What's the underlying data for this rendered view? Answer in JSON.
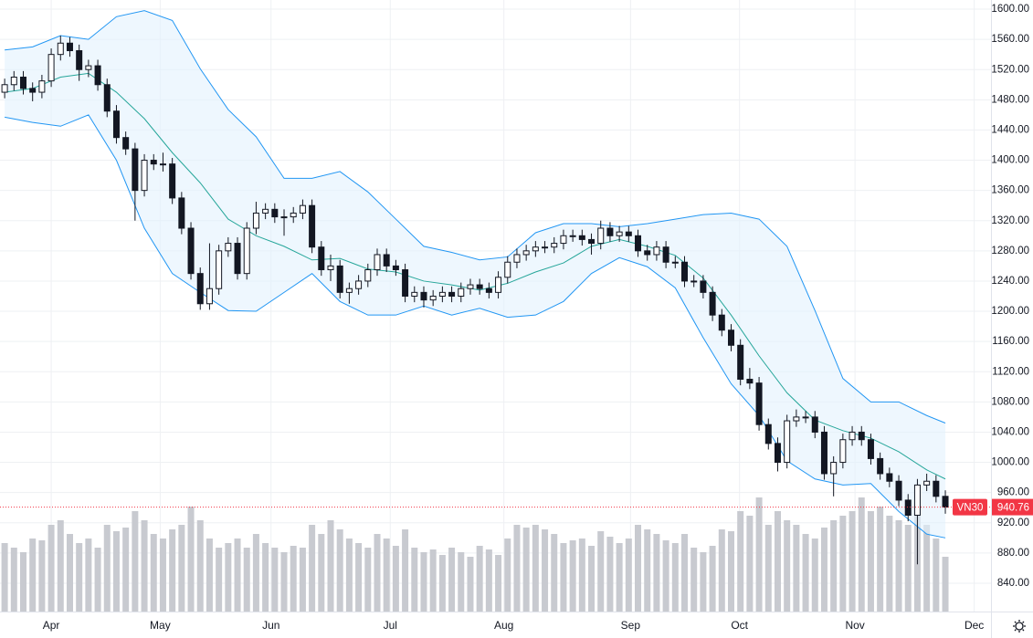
{
  "chart_data": {
    "type": "candlestick",
    "symbol": "VN30",
    "last": 940.76,
    "open": [
      1490,
      1500,
      1510,
      1495,
      1490,
      1505,
      1540,
      1555,
      1545,
      1520,
      1525,
      1500,
      1465,
      1430,
      1415,
      1360,
      1400,
      1395,
      1395,
      1350,
      1310,
      1250,
      1210,
      1230,
      1280,
      1290,
      1250,
      1310,
      1330,
      1335,
      1325,
      1325,
      1330,
      1340,
      1285,
      1255,
      1260,
      1225,
      1230,
      1240,
      1255,
      1275,
      1260,
      1255,
      1220,
      1225,
      1215,
      1220,
      1225,
      1220,
      1230,
      1235,
      1230,
      1225,
      1245,
      1265,
      1275,
      1280,
      1285,
      1285,
      1290,
      1300,
      1300,
      1295,
      1290,
      1310,
      1300,
      1305,
      1300,
      1280,
      1275,
      1285,
      1265,
      1265,
      1240,
      1240,
      1225,
      1195,
      1175,
      1155,
      1110,
      1105,
      1050,
      1025,
      1000,
      1055,
      1060,
      1060,
      1040,
      985,
      1000,
      1030,
      1040,
      1030,
      1005,
      985,
      975,
      950,
      930,
      970,
      975,
      955
    ],
    "high": [
      1508,
      1518,
      1518,
      1503,
      1513,
      1548,
      1565,
      1563,
      1553,
      1533,
      1533,
      1508,
      1473,
      1438,
      1423,
      1408,
      1408,
      1410,
      1403,
      1358,
      1318,
      1258,
      1290,
      1288,
      1298,
      1298,
      1318,
      1345,
      1343,
      1343,
      1335,
      1338,
      1348,
      1348,
      1293,
      1275,
      1268,
      1238,
      1248,
      1263,
      1283,
      1283,
      1268,
      1263,
      1233,
      1233,
      1228,
      1233,
      1233,
      1238,
      1243,
      1243,
      1238,
      1253,
      1273,
      1283,
      1288,
      1293,
      1293,
      1298,
      1308,
      1308,
      1308,
      1303,
      1320,
      1318,
      1313,
      1313,
      1308,
      1288,
      1293,
      1293,
      1273,
      1273,
      1248,
      1248,
      1233,
      1203,
      1183,
      1163,
      1125,
      1113,
      1058,
      1033,
      1063,
      1070,
      1068,
      1068,
      1048,
      1008,
      1038,
      1048,
      1048,
      1038,
      1013,
      993,
      983,
      958,
      978,
      985,
      983,
      963
    ],
    "low": [
      1482,
      1492,
      1487,
      1478,
      1482,
      1497,
      1532,
      1537,
      1505,
      1510,
      1492,
      1457,
      1422,
      1407,
      1320,
      1352,
      1387,
      1385,
      1342,
      1302,
      1242,
      1202,
      1202,
      1222,
      1272,
      1242,
      1242,
      1302,
      1322,
      1317,
      1300,
      1317,
      1322,
      1277,
      1247,
      1240,
      1217,
      1210,
      1222,
      1232,
      1247,
      1252,
      1247,
      1212,
      1212,
      1205,
      1207,
      1212,
      1212,
      1212,
      1222,
      1222,
      1217,
      1217,
      1237,
      1257,
      1267,
      1272,
      1277,
      1277,
      1282,
      1292,
      1287,
      1275,
      1282,
      1292,
      1292,
      1292,
      1272,
      1267,
      1267,
      1257,
      1257,
      1232,
      1232,
      1217,
      1187,
      1167,
      1147,
      1102,
      1097,
      1042,
      1017,
      988,
      992,
      1047,
      1052,
      1032,
      977,
      955,
      992,
      1022,
      1022,
      997,
      977,
      967,
      942,
      922,
      865,
      962,
      947,
      932
    ],
    "close": [
      1500,
      1510,
      1495,
      1490,
      1505,
      1540,
      1555,
      1545,
      1520,
      1525,
      1500,
      1465,
      1430,
      1415,
      1360,
      1400,
      1395,
      1395,
      1350,
      1310,
      1250,
      1210,
      1230,
      1280,
      1290,
      1250,
      1310,
      1330,
      1335,
      1325,
      1325,
      1330,
      1340,
      1285,
      1255,
      1260,
      1225,
      1230,
      1240,
      1255,
      1275,
      1260,
      1255,
      1220,
      1225,
      1215,
      1220,
      1225,
      1220,
      1230,
      1235,
      1230,
      1225,
      1245,
      1265,
      1275,
      1280,
      1285,
      1285,
      1290,
      1300,
      1300,
      1295,
      1290,
      1310,
      1300,
      1305,
      1300,
      1280,
      1275,
      1285,
      1265,
      1265,
      1240,
      1240,
      1225,
      1195,
      1175,
      1155,
      1110,
      1105,
      1050,
      1025,
      1000,
      1055,
      1060,
      1060,
      1040,
      985,
      1000,
      1030,
      1040,
      1030,
      1005,
      985,
      975,
      950,
      930,
      970,
      975,
      955,
      940.76
    ],
    "volume": [
      75,
      70,
      65,
      80,
      78,
      95,
      100,
      85,
      75,
      80,
      70,
      95,
      88,
      92,
      110,
      100,
      85,
      80,
      90,
      95,
      115,
      100,
      80,
      70,
      75,
      80,
      70,
      85,
      75,
      70,
      65,
      72,
      70,
      95,
      85,
      100,
      90,
      80,
      75,
      70,
      85,
      80,
      72,
      90,
      70,
      65,
      68,
      62,
      70,
      65,
      60,
      72,
      68,
      62,
      80,
      95,
      92,
      95,
      90,
      85,
      75,
      78,
      80,
      72,
      88,
      82,
      75,
      80,
      95,
      90,
      85,
      78,
      75,
      85,
      70,
      65,
      72,
      90,
      88,
      110,
      105,
      125,
      95,
      110,
      100,
      95,
      85,
      80,
      92,
      100,
      105,
      110,
      125,
      110,
      115,
      105,
      100,
      95,
      120,
      95,
      80,
      60
    ],
    "bands": {
      "x": [
        0,
        3,
        6,
        9,
        12,
        15,
        18,
        21,
        24,
        27,
        30,
        33,
        36,
        39,
        42,
        45,
        48,
        51,
        54,
        57,
        60,
        63,
        66,
        69,
        72,
        75,
        78,
        81,
        84,
        87,
        90,
        93,
        96,
        99,
        101
      ],
      "upper": [
        1546,
        1550,
        1565,
        1560,
        1590,
        1598,
        1585,
        1521,
        1467,
        1431,
        1376,
        1376,
        1385,
        1358,
        1322,
        1286,
        1278,
        1268,
        1272,
        1304,
        1316,
        1316,
        1312,
        1316,
        1322,
        1328,
        1330,
        1322,
        1286,
        1201,
        1111,
        1080,
        1080,
        1062,
        1052
      ],
      "middle": [
        1490,
        1495,
        1510,
        1515,
        1490,
        1455,
        1410,
        1370,
        1322,
        1300,
        1286,
        1268,
        1270,
        1256,
        1252,
        1240,
        1235,
        1228,
        1237,
        1252,
        1264,
        1286,
        1295,
        1286,
        1274,
        1244,
        1195,
        1141,
        1092,
        1056,
        1042,
        1032,
        1014,
        990,
        978
      ],
      "lower": [
        1457,
        1450,
        1445,
        1460,
        1400,
        1310,
        1250,
        1225,
        1201,
        1200,
        1225,
        1250,
        1213,
        1195,
        1195,
        1207,
        1195,
        1204,
        1192,
        1195,
        1213,
        1250,
        1271,
        1259,
        1231,
        1165,
        1104,
        1062,
        1002,
        978,
        970,
        972,
        935,
        905,
        900
      ],
      "line_color": "#2196f3",
      "middle_color": "#26a69a",
      "fill": "#e3f2fd"
    },
    "up_color": "#ffffff",
    "down_color": "#131722",
    "volume_color": "#c8cad0",
    "last_color": "#f23645",
    "grid": true,
    "xlim": [
      -0.5,
      105.9
    ],
    "ylim": [
      802.5,
      1612.1
    ],
    "xticks": [
      {
        "value": 5,
        "label": "Apr"
      },
      {
        "value": 16.7,
        "label": "May"
      },
      {
        "value": 28.6,
        "label": "Jun"
      },
      {
        "value": 41.4,
        "label": "Jul"
      },
      {
        "value": 53.6,
        "label": "Aug"
      },
      {
        "value": 67.2,
        "label": "Sep"
      },
      {
        "value": 78.9,
        "label": "Oct"
      },
      {
        "value": 91.3,
        "label": "Nov"
      },
      {
        "value": 104.1,
        "label": "Dec"
      }
    ],
    "yticks": [
      {
        "value": 840,
        "label": "840.00"
      },
      {
        "value": 880,
        "label": "880.00"
      },
      {
        "value": 920,
        "label": "920.00"
      },
      {
        "value": 960,
        "label": "960.00"
      },
      {
        "value": 1000,
        "label": "1000.00"
      },
      {
        "value": 1040,
        "label": "1040.00"
      },
      {
        "value": 1080,
        "label": "1080.00"
      },
      {
        "value": 1120,
        "label": "1120.00"
      },
      {
        "value": 1160,
        "label": "1160.00"
      },
      {
        "value": 1200,
        "label": "1200.00"
      },
      {
        "value": 1240,
        "label": "1240.00"
      },
      {
        "value": 1280,
        "label": "1280.00"
      },
      {
        "value": 1320,
        "label": "1320.00"
      },
      {
        "value": 1360,
        "label": "1360.00"
      },
      {
        "value": 1400,
        "label": "1400.00"
      },
      {
        "value": 1440,
        "label": "1440.00"
      },
      {
        "value": 1480,
        "label": "1480.00"
      },
      {
        "value": 1520,
        "label": "1520.00"
      },
      {
        "value": 1560,
        "label": "1560.00"
      },
      {
        "value": 1600,
        "label": "1600.00"
      }
    ]
  }
}
